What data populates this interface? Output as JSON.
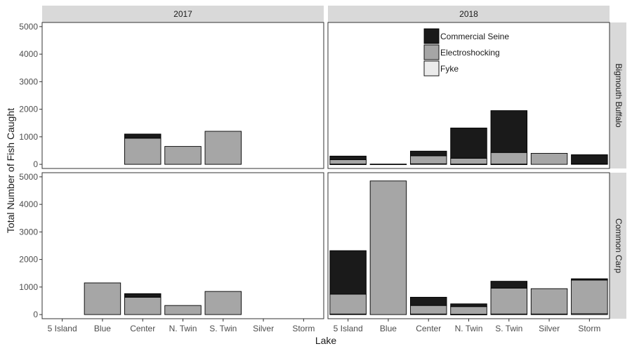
{
  "chart_data": {
    "type": "bar",
    "stacked": true,
    "xlabel": "Lake",
    "ylabel": "Total Number of Fish Caught",
    "ylim": [
      -150,
      5150
    ],
    "yticks": [
      0,
      1000,
      2000,
      3000,
      4000,
      5000
    ],
    "categories": [
      "5 Island",
      "Blue",
      "Center",
      "N. Twin",
      "S. Twin",
      "Silver",
      "Storm"
    ],
    "column_facets": [
      "2017",
      "2018"
    ],
    "row_facets": [
      "Bigmouth Buffalo",
      "Common Carp"
    ],
    "series_names": [
      "Commercial Seine",
      "Electroshocking",
      "Fyke"
    ],
    "colors": {
      "Commercial Seine": "#1a1a1a",
      "Electroshocking": "#a6a6a6",
      "Fyke": "#ebebeb",
      "strip": "#d9d9d9",
      "grid_border": "#333333"
    },
    "legend_position": "top-right of the 2018 Bigmouth Buffalo panel",
    "grid": false,
    "panels": [
      {
        "column": "2017",
        "row": "Bigmouth Buffalo",
        "series": [
          {
            "name": "Fyke",
            "values": [
              0,
              0,
              0,
              0,
              0,
              0,
              0
            ]
          },
          {
            "name": "Electroshocking",
            "values": [
              0,
              0,
              950,
              650,
              1200,
              0,
              0
            ]
          },
          {
            "name": "Commercial Seine",
            "values": [
              0,
              0,
              150,
              0,
              0,
              0,
              0
            ]
          }
        ]
      },
      {
        "column": "2018",
        "row": "Bigmouth Buffalo",
        "series": [
          {
            "name": "Fyke",
            "values": [
              10,
              0,
              20,
              10,
              10,
              0,
              20
            ]
          },
          {
            "name": "Electroshocking",
            "values": [
              160,
              0,
              290,
              210,
              420,
              400,
              0
            ]
          },
          {
            "name": "Commercial Seine",
            "values": [
              130,
              10,
              170,
              1100,
              1520,
              0,
              330
            ]
          }
        ]
      },
      {
        "column": "2017",
        "row": "Common Carp",
        "series": [
          {
            "name": "Fyke",
            "values": [
              0,
              0,
              0,
              0,
              0,
              0,
              0
            ]
          },
          {
            "name": "Electroshocking",
            "values": [
              0,
              1150,
              630,
              330,
              840,
              0,
              0
            ]
          },
          {
            "name": "Commercial Seine",
            "values": [
              0,
              0,
              130,
              0,
              0,
              0,
              0
            ]
          }
        ]
      },
      {
        "column": "2018",
        "row": "Common Carp",
        "series": [
          {
            "name": "Fyke",
            "values": [
              20,
              0,
              20,
              10,
              20,
              20,
              30
            ]
          },
          {
            "name": "Electroshocking",
            "values": [
              720,
              4850,
              310,
              280,
              940,
              920,
              1220
            ]
          },
          {
            "name": "Commercial Seine",
            "values": [
              1580,
              0,
              300,
              100,
              250,
              0,
              50
            ]
          }
        ]
      }
    ]
  }
}
